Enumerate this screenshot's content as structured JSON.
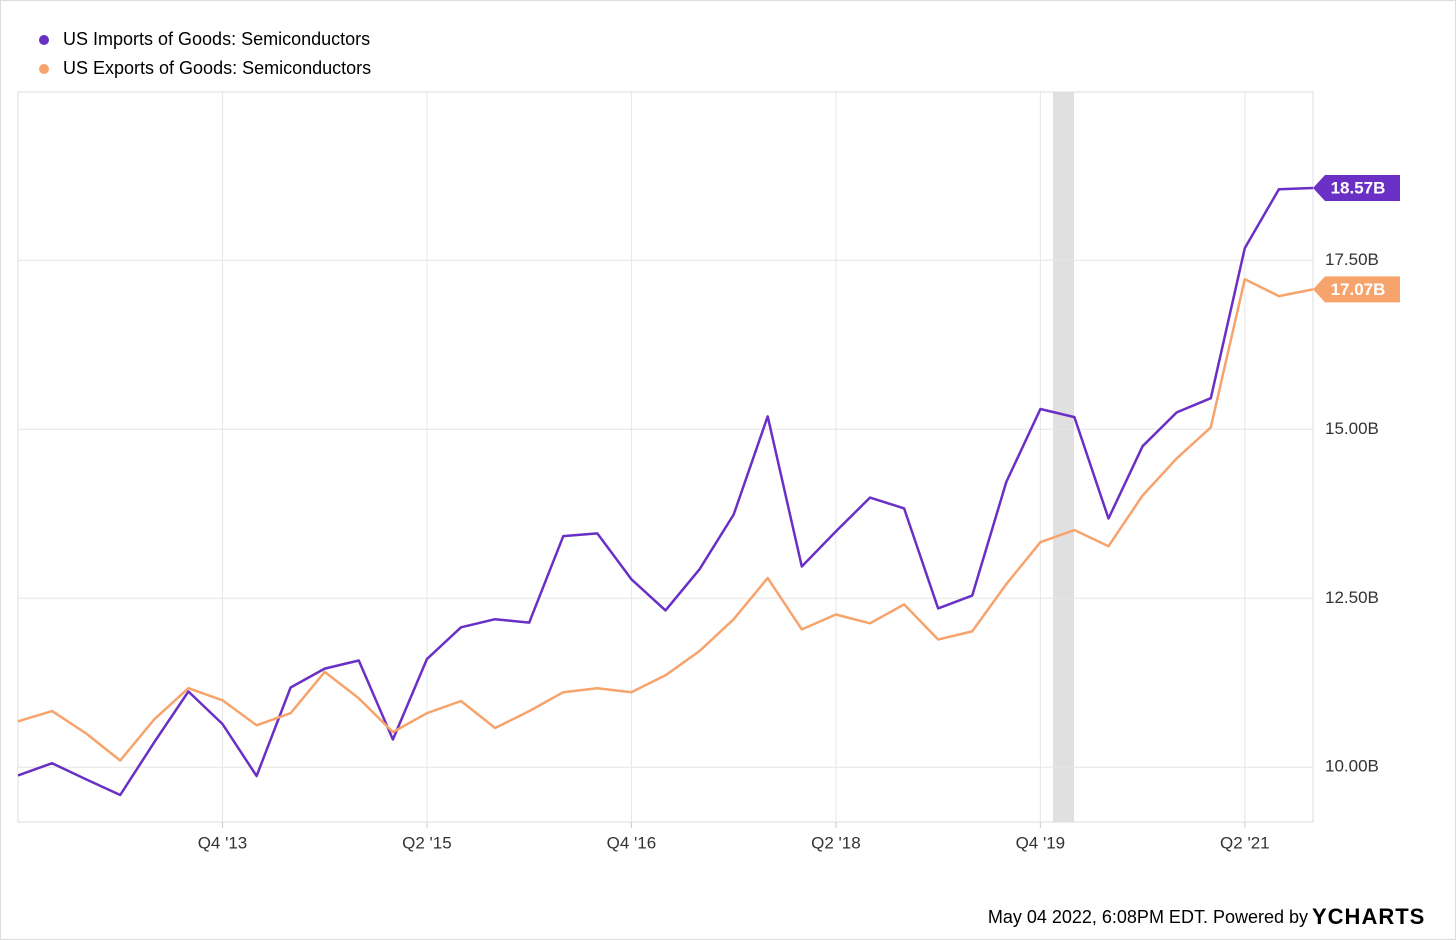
{
  "chart_data": {
    "type": "line",
    "categories": [
      null,
      null,
      null,
      null,
      null,
      null,
      "Q4 '13",
      null,
      null,
      null,
      null,
      null,
      "Q2 '15",
      null,
      null,
      null,
      null,
      null,
      "Q4 '16",
      null,
      null,
      null,
      null,
      null,
      "Q2 '18",
      null,
      null,
      null,
      null,
      null,
      "Q4 '19",
      null,
      null,
      null,
      null,
      null,
      "Q2 '21",
      null,
      null
    ],
    "series": [
      {
        "name": "US Imports of Goods: Semiconductors",
        "color": "#6a2fc4",
        "values": [
          9.88,
          10.06,
          9.82,
          9.59,
          10.37,
          11.12,
          10.64,
          9.87,
          11.18,
          11.46,
          11.58,
          10.41,
          11.6,
          12.07,
          12.19,
          12.14,
          13.42,
          13.46,
          12.78,
          12.32,
          12.93,
          13.74,
          15.19,
          12.97,
          13.49,
          13.99,
          13.83,
          12.35,
          12.54,
          14.22,
          15.3,
          15.18,
          13.68,
          14.75,
          15.25,
          15.46,
          17.68,
          18.55,
          18.57
        ],
        "value_labels": [
          null,
          null,
          null,
          null,
          null,
          null,
          null,
          null,
          null,
          null,
          null,
          null,
          null,
          null,
          null,
          null,
          null,
          null,
          null,
          null,
          null,
          null,
          null,
          null,
          null,
          null,
          null,
          null,
          null,
          null,
          null,
          null,
          null,
          null,
          null,
          null,
          null,
          null,
          "18.57B"
        ]
      },
      {
        "name": "US Exports of Goods: Semiconductors",
        "color": "#f7a36c",
        "values": [
          10.68,
          10.83,
          10.5,
          10.1,
          10.71,
          11.17,
          10.99,
          10.62,
          10.8,
          11.41,
          11.02,
          10.52,
          10.8,
          10.98,
          10.58,
          10.83,
          11.11,
          11.17,
          11.11,
          11.36,
          11.72,
          12.19,
          12.8,
          12.04,
          12.26,
          12.13,
          12.41,
          11.89,
          12.01,
          12.71,
          13.33,
          13.51,
          13.27,
          14.02,
          14.57,
          15.03,
          17.22,
          16.97,
          17.07
        ],
        "value_labels": [
          null,
          null,
          null,
          null,
          null,
          null,
          null,
          null,
          null,
          null,
          null,
          null,
          null,
          null,
          null,
          null,
          null,
          null,
          null,
          null,
          null,
          null,
          null,
          null,
          null,
          null,
          null,
          null,
          null,
          null,
          null,
          null,
          null,
          null,
          null,
          null,
          null,
          null,
          "17.07B"
        ]
      }
    ],
    "ylim": [
      9.19,
      19.99
    ],
    "yticks": [
      {
        "value": 10,
        "label": "10.00B"
      },
      {
        "value": 12.5,
        "label": "12.50B"
      },
      {
        "value": 15,
        "label": "15.00B"
      },
      {
        "value": 17.5,
        "label": "17.50B"
      }
    ],
    "grid": true,
    "legend": "top-left",
    "footer": "May 04 2022, 6:08PM EDT. Powered by",
    "brand": "YCHARTS"
  }
}
